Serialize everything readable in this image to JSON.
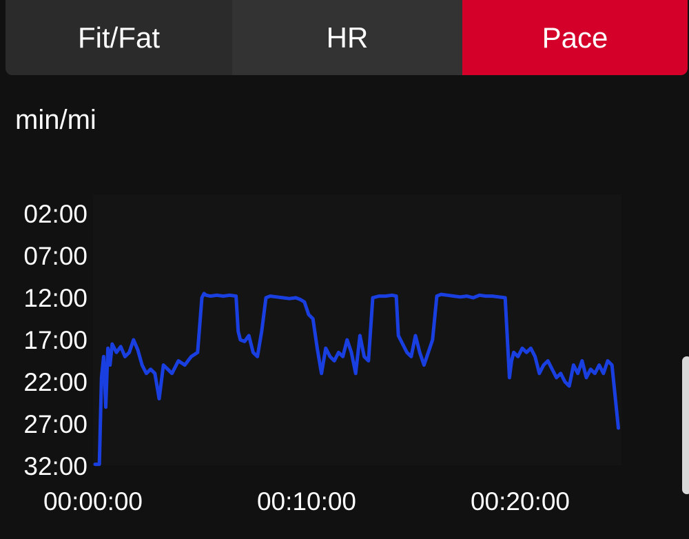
{
  "tabs": [
    {
      "label": "Fit/Fat",
      "active": false
    },
    {
      "label": "HR",
      "active": false
    },
    {
      "label": "Pace",
      "active": true
    }
  ],
  "accent_color": "#d4002a",
  "line_color": "#1a3fe0",
  "unit_label": "min/mi",
  "chart_data": {
    "type": "line",
    "title": "",
    "xlabel": "",
    "ylabel": "min/mi",
    "y_inverted": true,
    "ylim": [
      2,
      32
    ],
    "xlim": [
      0,
      24.5
    ],
    "y_ticks": [
      "02:00",
      "07:00",
      "12:00",
      "17:00",
      "22:00",
      "27:00",
      "32:00"
    ],
    "y_tick_values": [
      2,
      7,
      12,
      17,
      22,
      27,
      32
    ],
    "x_ticks": [
      "00:00:00",
      "00:10:00",
      "00:20:00"
    ],
    "x_tick_values": [
      0,
      10,
      20
    ],
    "series": [
      {
        "x": [
          0.0,
          0.2,
          0.3,
          0.4,
          0.5,
          0.6,
          0.7,
          0.8,
          1.0,
          1.2,
          1.4,
          1.6,
          1.8,
          2.0,
          2.2,
          2.4,
          2.6,
          2.8,
          3.0,
          3.2,
          3.4,
          3.6,
          3.9,
          4.2,
          4.5,
          4.8,
          5.0,
          5.1,
          5.2,
          5.4,
          5.7,
          6.0,
          6.3,
          6.6,
          6.7,
          6.8,
          7.0,
          7.2,
          7.4,
          7.6,
          7.8,
          8.0,
          8.2,
          8.5,
          8.8,
          9.1,
          9.4,
          9.6,
          9.8,
          10.0,
          10.2,
          10.4,
          10.6,
          10.8,
          11.0,
          11.2,
          11.4,
          11.6,
          11.8,
          12.0,
          12.2,
          12.4,
          12.6,
          12.8,
          13.0,
          13.3,
          13.6,
          13.9,
          14.1,
          14.2,
          14.4,
          14.6,
          14.8,
          15.0,
          15.2,
          15.4,
          15.6,
          15.8,
          16.0,
          16.2,
          16.5,
          16.8,
          17.1,
          17.4,
          17.7,
          18.0,
          18.3,
          18.6,
          18.9,
          19.2,
          19.4,
          19.5,
          19.6,
          19.8,
          20.0,
          20.2,
          20.4,
          20.6,
          20.8,
          21.0,
          21.2,
          21.4,
          21.6,
          21.8,
          22.0,
          22.2,
          22.4,
          22.6,
          22.8,
          23.0,
          23.2,
          23.4,
          23.6,
          23.8,
          24.0,
          24.2,
          24.4,
          24.5
        ],
        "y": [
          31.8,
          31.8,
          21.5,
          19.0,
          25.0,
          18.0,
          20.0,
          17.5,
          18.5,
          17.8,
          19.0,
          18.5,
          17.0,
          18.2,
          20.0,
          21.0,
          20.5,
          21.0,
          24.0,
          20.0,
          20.5,
          21.0,
          19.5,
          20.0,
          19.0,
          18.5,
          12.0,
          11.5,
          11.7,
          11.8,
          11.7,
          11.8,
          11.7,
          11.8,
          16.0,
          17.0,
          17.2,
          16.5,
          18.5,
          19.0,
          16.0,
          12.0,
          11.8,
          11.9,
          12.0,
          12.1,
          12.0,
          12.2,
          12.5,
          14.0,
          14.5,
          18.0,
          21.0,
          18.0,
          19.0,
          19.5,
          18.5,
          19.0,
          17.0,
          18.5,
          21.0,
          16.5,
          19.0,
          19.5,
          12.0,
          11.8,
          11.8,
          11.7,
          11.8,
          16.5,
          17.5,
          18.5,
          19.0,
          16.5,
          18.5,
          20.0,
          18.5,
          17.0,
          11.8,
          11.6,
          11.7,
          11.8,
          11.9,
          11.8,
          12.0,
          11.7,
          11.8,
          11.8,
          11.9,
          12.0,
          21.5,
          19.5,
          18.5,
          19.0,
          18.0,
          18.5,
          18.0,
          19.0,
          21.0,
          20.0,
          19.5,
          20.5,
          21.5,
          21.0,
          22.0,
          22.5,
          20.0,
          21.0,
          19.5,
          21.5,
          20.5,
          21.0,
          20.0,
          21.0,
          19.5,
          20.0,
          25.0,
          27.5
        ]
      }
    ]
  }
}
